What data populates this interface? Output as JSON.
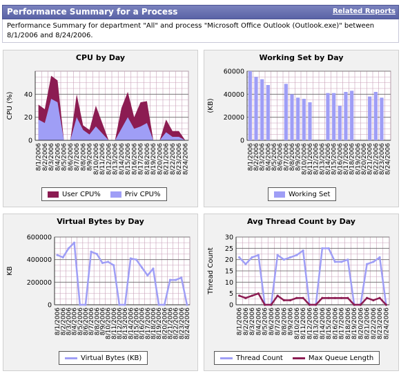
{
  "header": {
    "title": "Performance Summary for a Process",
    "related_reports": "Related Reports",
    "description": "Performance Summary for department \"All\" and process \"Microsoft Office Outlook (Outlook.exe)\" between 8/1/2006 and 8/24/2006."
  },
  "colors": {
    "user_cpu": "#8c1c52",
    "priv_cpu": "#9f9ef6",
    "working_set": "#9f9ef6",
    "virtual_bytes": "#9f9ef6",
    "thread_count": "#9f9ef6",
    "max_queue": "#8c1c52",
    "grid": "#c8a0b8",
    "plot_bg": "#ffffff"
  },
  "chart_data": [
    {
      "type": "area",
      "title": "CPU by Day",
      "ylabel": "CPU (%)",
      "ylim": [
        0,
        60
      ],
      "y_ticks": [
        0,
        20,
        40
      ],
      "categories": [
        "8/1/2006",
        "8/2/2006",
        "8/3/2006",
        "8/4/2006",
        "8/5/2006",
        "8/6/2006",
        "8/7/2006",
        "8/8/2006",
        "8/9/2006",
        "8/10/2006",
        "8/11/2006",
        "8/12/2006",
        "8/13/2006",
        "8/14/2006",
        "8/15/2006",
        "8/16/2006",
        "8/17/2006",
        "8/18/2006",
        "8/19/2006",
        "8/20/2006",
        "8/21/2006",
        "8/22/2006",
        "8/23/2006",
        "8/24/2006"
      ],
      "stacked": true,
      "series": [
        {
          "name": "Priv CPU%",
          "values": [
            18,
            15,
            36,
            33,
            0,
            0,
            20,
            9,
            5,
            12,
            6,
            0,
            0,
            10,
            20,
            10,
            12,
            15,
            0,
            0,
            7,
            3,
            3,
            0
          ]
        },
        {
          "name": "User CPU%",
          "values": [
            13,
            12,
            20,
            19,
            0,
            0,
            20,
            4,
            4,
            18,
            9,
            0,
            0,
            18,
            22,
            10,
            21,
            19,
            0,
            0,
            11,
            5,
            5,
            0
          ]
        }
      ],
      "legend": [
        "User CPU%",
        "Priv CPU%"
      ],
      "legend_position": "bottom"
    },
    {
      "type": "bar",
      "title": "Working Set by Day",
      "ylabel": "(KB)",
      "ylim": [
        0,
        60000
      ],
      "y_ticks": [
        0,
        20000,
        40000,
        60000
      ],
      "categories": [
        "8/1/2006",
        "8/2/2006",
        "8/3/2006",
        "8/4/2006",
        "8/5/2006",
        "8/6/2006",
        "8/7/2006",
        "8/8/2006",
        "8/9/2006",
        "8/10/2006",
        "8/11/2006",
        "8/12/2006",
        "8/13/2006",
        "8/14/2006",
        "8/15/2006",
        "8/16/2006",
        "8/17/2006",
        "8/18/2006",
        "8/19/2006",
        "8/20/2006",
        "8/21/2006",
        "8/22/2006",
        "8/23/2006",
        "8/24/2006"
      ],
      "values": [
        60000,
        55000,
        53000,
        48000,
        0,
        0,
        49000,
        40000,
        37000,
        36000,
        33000,
        0,
        0,
        41000,
        41000,
        30000,
        42000,
        43000,
        0,
        0,
        38000,
        42000,
        37000,
        0
      ],
      "legend": [
        "Working Set"
      ],
      "legend_position": "bottom"
    },
    {
      "type": "line",
      "title": "Virtual Bytes by Day",
      "ylabel": "KB",
      "ylim": [
        0,
        600000
      ],
      "y_ticks": [
        0,
        200000,
        400000,
        600000
      ],
      "categories": [
        "8/1/2006",
        "8/2/2006",
        "8/3/2006",
        "8/4/2006",
        "8/5/2006",
        "8/6/2006",
        "8/7/2006",
        "8/8/2006",
        "8/9/2006",
        "8/10/2006",
        "8/11/2006",
        "8/12/2006",
        "8/13/2006",
        "8/14/2006",
        "8/15/2006",
        "8/16/2006",
        "8/17/2006",
        "8/18/2006",
        "8/19/2006",
        "8/20/2006",
        "8/21/2006",
        "8/22/2006",
        "8/23/2006",
        "8/24/2006"
      ],
      "series": [
        {
          "name": "Virtual Bytes (KB)",
          "values": [
            440000,
            420000,
            500000,
            550000,
            0,
            0,
            470000,
            450000,
            370000,
            380000,
            350000,
            0,
            0,
            410000,
            400000,
            330000,
            260000,
            320000,
            0,
            0,
            220000,
            220000,
            240000,
            0
          ]
        }
      ],
      "legend": [
        "Virtual Bytes (KB)"
      ],
      "legend_position": "bottom"
    },
    {
      "type": "line",
      "title": "Avg Thread Count by Day",
      "ylabel": "Thread Count",
      "ylim": [
        0,
        30
      ],
      "y_ticks": [
        0,
        5,
        10,
        15,
        20,
        25,
        30
      ],
      "categories": [
        "8/1/2006",
        "8/2/2006",
        "8/3/2006",
        "8/4/2006",
        "8/5/2006",
        "8/6/2006",
        "8/7/2006",
        "8/8/2006",
        "8/9/2006",
        "8/10/2006",
        "8/11/2006",
        "8/12/2006",
        "8/13/2006",
        "8/14/2006",
        "8/15/2006",
        "8/16/2006",
        "8/17/2006",
        "8/18/2006",
        "8/19/2006",
        "8/20/2006",
        "8/21/2006",
        "8/22/2006",
        "8/23/2006",
        "8/24/2006"
      ],
      "series": [
        {
          "name": "Thread Count",
          "values": [
            21,
            18,
            21,
            22,
            0,
            0,
            22,
            20,
            21,
            22,
            24,
            0,
            0,
            25,
            25,
            19,
            19,
            20,
            0,
            0,
            18,
            19,
            21,
            0
          ]
        },
        {
          "name": "Max Queue Length",
          "values": [
            4,
            3,
            4,
            5,
            0,
            0,
            4,
            2,
            2,
            3,
            3,
            0,
            0,
            3,
            3,
            3,
            3,
            3,
            0,
            0,
            3,
            2,
            3,
            0
          ]
        }
      ],
      "legend": [
        "Thread Count",
        "Max Queue Length"
      ],
      "legend_position": "bottom"
    }
  ]
}
